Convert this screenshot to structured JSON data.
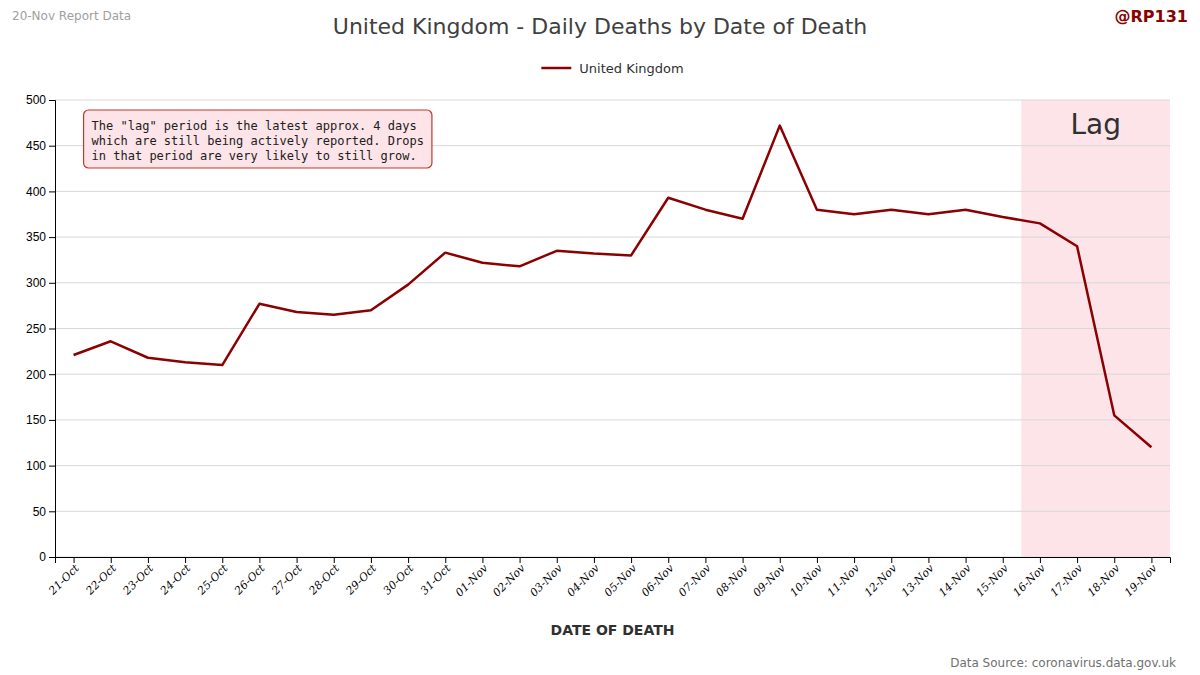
{
  "chart_data": {
    "type": "line",
    "title": "United Kingdom - Daily Deaths by Date of Death",
    "subtitle": "20-Nov Report Data",
    "xlabel": "DATE OF DEATH",
    "x": [
      "21-Oct",
      "22-Oct",
      "23-Oct",
      "24-Oct",
      "25-Oct",
      "26-Oct",
      "27-Oct",
      "28-Oct",
      "29-Oct",
      "30-Oct",
      "31-Oct",
      "01-Nov",
      "02-Nov",
      "03-Nov",
      "04-Nov",
      "05-Nov",
      "06-Nov",
      "07-Nov",
      "08-Nov",
      "09-Nov",
      "10-Nov",
      "11-Nov",
      "12-Nov",
      "13-Nov",
      "14-Nov",
      "15-Nov",
      "16-Nov",
      "17-Nov",
      "18-Nov",
      "19-Nov"
    ],
    "series": [
      {
        "name": "United Kingdom",
        "color": "#8B0000",
        "values": [
          221,
          236,
          218,
          213,
          210,
          277,
          268,
          265,
          270,
          298,
          333,
          322,
          318,
          335,
          332,
          330,
          393,
          380,
          370,
          472,
          380,
          375,
          380,
          375,
          380,
          372,
          365,
          340,
          155,
          120
        ]
      }
    ],
    "ylim": [
      0,
      500
    ],
    "yticks": [
      0,
      50,
      100,
      150,
      200,
      250,
      300,
      350,
      400,
      450,
      500
    ],
    "grid": true,
    "legend": "top",
    "annotations": [
      {
        "text": "@RP131",
        "color": "#8B0000"
      },
      {
        "text": "Data Source: coronavirus.data.gov.uk"
      },
      {
        "text": "Lag",
        "x": [
          "16-Nov",
          "19-Nov"
        ],
        "color": "#fce4e8"
      },
      {
        "text": "The \"lag\" period is the latest approx. 4 days\nwhich are still being actively reported. Drops\nin that period are very likely to still grow.",
        "color": "#fce4e8",
        "border_color": "#c0392b"
      }
    ]
  }
}
